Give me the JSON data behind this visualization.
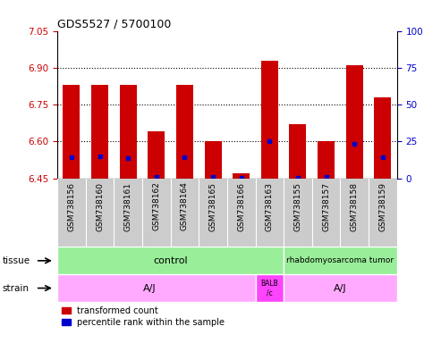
{
  "title": "GDS5527 / 5700100",
  "samples": [
    "GSM738156",
    "GSM738160",
    "GSM738161",
    "GSM738162",
    "GSM738164",
    "GSM738165",
    "GSM738166",
    "GSM738163",
    "GSM738155",
    "GSM738157",
    "GSM738158",
    "GSM738159"
  ],
  "red_values": [
    6.83,
    6.83,
    6.83,
    6.64,
    6.83,
    6.6,
    6.47,
    6.93,
    6.67,
    6.6,
    6.91,
    6.78
  ],
  "blue_values": [
    6.535,
    6.54,
    6.533,
    6.455,
    6.535,
    6.455,
    6.453,
    6.603,
    6.452,
    6.455,
    6.592,
    6.535
  ],
  "ylim_left": [
    6.45,
    7.05
  ],
  "ylim_right": [
    0,
    100
  ],
  "yticks_left": [
    6.45,
    6.6,
    6.75,
    6.9,
    7.05
  ],
  "yticks_right": [
    0,
    25,
    50,
    75,
    100
  ],
  "baseline": 6.45,
  "bar_color": "#CC0000",
  "blue_color": "#0000CC",
  "background_color": "#ffffff",
  "left_label_color": "#CC0000",
  "right_label_color": "#0000CC",
  "tissue_control_color": "#99EE99",
  "tissue_rhab_color": "#99EE99",
  "strain_aj_color": "#FFAAFF",
  "strain_balb_color": "#FF44FF"
}
